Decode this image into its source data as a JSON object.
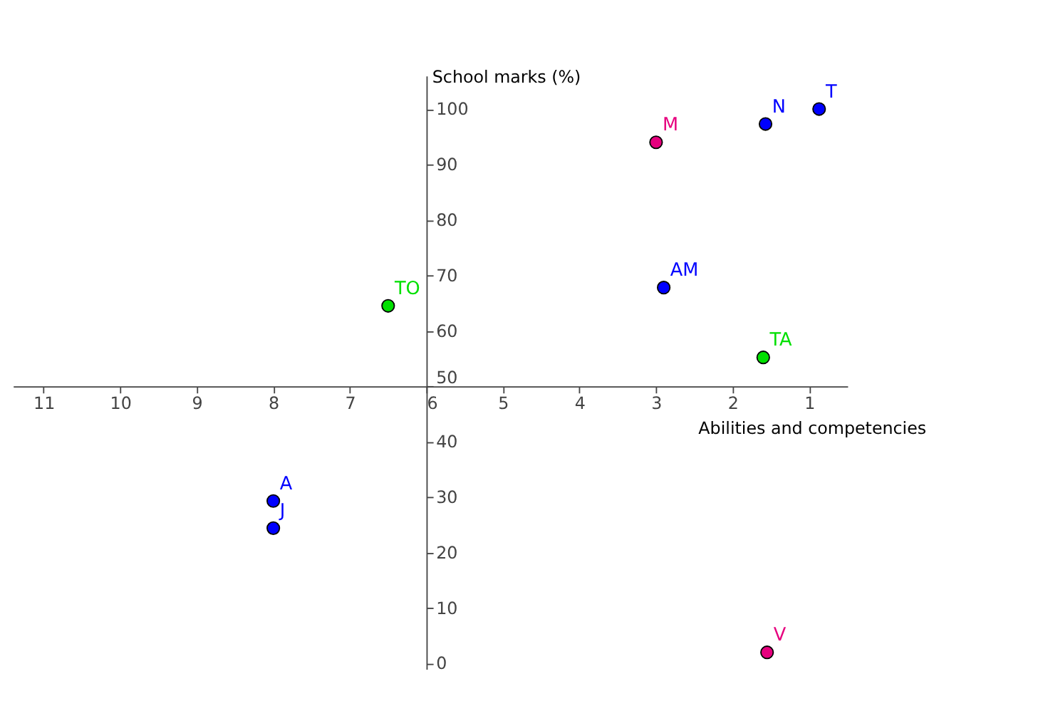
{
  "chart_data": {
    "type": "scatter",
    "xlabel": "Abilities and competencies",
    "ylabel": "School marks (%)",
    "xlim": [
      11.4,
      0.5
    ],
    "ylim": [
      -1,
      106
    ],
    "xticks": [
      1,
      2,
      3,
      4,
      5,
      6,
      7,
      8,
      9,
      10,
      11
    ],
    "yticks": [
      0,
      10,
      20,
      30,
      40,
      50,
      60,
      70,
      80,
      90,
      100
    ],
    "grid": false,
    "legend": false,
    "marker": "circle",
    "series": [
      {
        "name": "T",
        "color": "#0000ff",
        "x": [
          0.87
        ],
        "values": [
          100
        ]
      },
      {
        "name": "N",
        "color": "#0000ff",
        "x": [
          1.57
        ],
        "values": [
          97.3
        ]
      },
      {
        "name": "M",
        "color": "#e6007e",
        "x": [
          3.0
        ],
        "values": [
          94
        ]
      },
      {
        "name": "AM",
        "color": "#0000ff",
        "x": [
          2.9
        ],
        "values": [
          67.8
        ]
      },
      {
        "name": "TO",
        "color": "#00e000",
        "x": [
          6.5
        ],
        "values": [
          64.5
        ]
      },
      {
        "name": "TA",
        "color": "#00e000",
        "x": [
          1.6
        ],
        "values": [
          55.2
        ]
      },
      {
        "name": "A",
        "color": "#0000ff",
        "x": [
          8.0
        ],
        "values": [
          29.3
        ]
      },
      {
        "name": "J",
        "color": "#0000ff",
        "x": [
          8.0
        ],
        "values": [
          24.4
        ]
      },
      {
        "name": "V",
        "color": "#e6007e",
        "x": [
          1.55
        ],
        "values": [
          2
        ]
      }
    ]
  }
}
